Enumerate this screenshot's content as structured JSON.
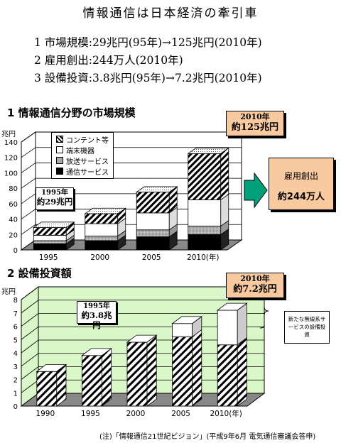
{
  "title": "情報通信は日本経済の牽引車",
  "summary": [
    "1 市場規模:29兆円(95年)→125兆円(2010年)",
    "2 雇用創出:244万人(2010年)",
    "3 設備投資:3.8兆円(95年)→7.2兆円(2010年)"
  ],
  "colors": {
    "callout": "#f9c9a0",
    "arrow": "#00a07a",
    "chart2_bg": "#d9f7c8",
    "grid": "#000000"
  },
  "chart1": {
    "heading": "1 情報通信分野の市場規模",
    "unit": "兆円",
    "legend": [
      "コンテント等",
      "端末機器",
      "放送サービス",
      "通信サービス"
    ],
    "callout_2010": {
      "line1": "2010年",
      "line2": "約125兆円"
    },
    "callout_1995": {
      "line1": "1995年",
      "line2": "約29兆円"
    },
    "employment": {
      "label": "雇用創出",
      "value": "約244万人"
    }
  },
  "chart2": {
    "heading": "2 設備投資額",
    "unit": "兆円",
    "callout_2010": {
      "line1": "2010年",
      "line2": "約7.2兆円"
    },
    "callout_1995": {
      "line1": "1995年",
      "line2": "約3.8兆円"
    },
    "note": "新たな無線系サービスの設備投資"
  },
  "footnote": "(注)「情報通信21世紀ビジョン」(平成9年6月 電気通信審議会答申)",
  "chart_data": [
    {
      "type": "bar",
      "stacked": true,
      "title": "情報通信分野の市場規模",
      "ylabel": "兆円",
      "categories": [
        "1995",
        "2000",
        "2005",
        "2010(年)"
      ],
      "ylim": [
        0,
        140
      ],
      "yticks": [
        0,
        20,
        40,
        60,
        80,
        100,
        120,
        140
      ],
      "series": [
        {
          "name": "通信サービス",
          "values": [
            8,
            12,
            17,
            20
          ]
        },
        {
          "name": "放送サービス",
          "values": [
            4,
            6,
            9,
            11
          ]
        },
        {
          "name": "端末機器",
          "values": [
            7,
            16,
            22,
            34
          ]
        },
        {
          "name": "コンテント等",
          "values": [
            10,
            13,
            27,
            60
          ]
        }
      ]
    },
    {
      "type": "bar",
      "title": "設備投資額",
      "ylabel": "兆円",
      "categories": [
        "1990",
        "1995",
        "2000",
        "2005",
        "2010(年)"
      ],
      "ylim": [
        0,
        8
      ],
      "yticks": [
        0,
        1,
        2,
        3,
        4,
        5,
        6,
        7,
        8
      ],
      "series": [
        {
          "name": "設備投資",
          "values": [
            2.6,
            3.8,
            4.8,
            5.2,
            4.6
          ]
        },
        {
          "name": "新たな無線系サービスの設備投資",
          "values": [
            0,
            0,
            0,
            1.0,
            2.6
          ]
        }
      ]
    }
  ]
}
